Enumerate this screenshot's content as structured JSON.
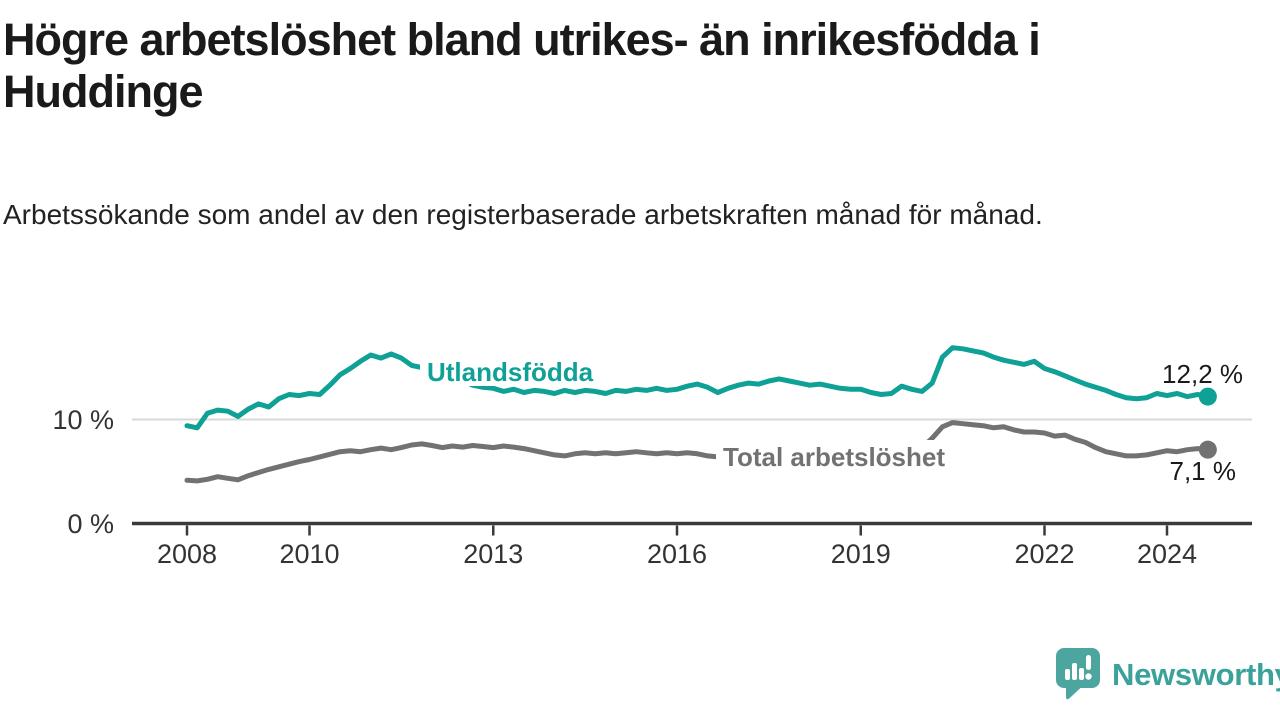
{
  "header": {
    "title": "Högre arbetslöshet bland utrikes- än inrikesfödda i Huddinge",
    "subtitle": "Arbetssökande som andel av den registerbaserade arbetskraften månad för månad."
  },
  "colors": {
    "series_foreign": "#0fa096",
    "series_total": "#727272",
    "axis": "#3a3a3a",
    "grid": "#d8d8d8",
    "tick_text": "#333333",
    "value_text": "#1a1a1a",
    "logo": "#4ca69f",
    "logo_text": "#3aa29b"
  },
  "chart_data": {
    "type": "line",
    "x_start": 2008.0,
    "x_step": 0.16667,
    "x_unit": "year (monthly data, one point per 2 months)",
    "y_unit": "%",
    "grid": "horizontal gridline at 10 % only",
    "legend_position": "labels on lines",
    "xlim": [
      2007.2,
      2025.4
    ],
    "ylim": [
      0,
      21.5
    ],
    "xticks": [
      {
        "value": 2008,
        "label": "2008"
      },
      {
        "value": 2010,
        "label": "2010"
      },
      {
        "value": 2013,
        "label": "2013"
      },
      {
        "value": 2016,
        "label": "2016"
      },
      {
        "value": 2019,
        "label": "2019"
      },
      {
        "value": 2022,
        "label": "2022"
      },
      {
        "value": 2024,
        "label": "2024"
      }
    ],
    "yticks": [
      {
        "value": 0,
        "label": "0 %"
      },
      {
        "value": 10,
        "label": "10 %"
      }
    ],
    "series": [
      {
        "name": "Utlandsfödda",
        "color_key": "series_foreign",
        "end_label": "12,2 %",
        "values": [
          9.4,
          9.2,
          10.6,
          10.9,
          10.8,
          10.3,
          11.0,
          11.5,
          11.2,
          12.0,
          12.4,
          12.3,
          12.5,
          12.4,
          13.3,
          14.3,
          14.9,
          15.6,
          16.2,
          15.9,
          16.3,
          15.9,
          15.2,
          15.0,
          15.1,
          14.7,
          14.2,
          13.7,
          13.3,
          13.1,
          13.0,
          12.7,
          12.9,
          12.6,
          12.8,
          12.7,
          12.5,
          12.8,
          12.6,
          12.8,
          12.7,
          12.5,
          12.8,
          12.7,
          12.9,
          12.8,
          13.0,
          12.8,
          12.9,
          13.2,
          13.4,
          13.1,
          12.6,
          13.0,
          13.3,
          13.5,
          13.4,
          13.7,
          13.9,
          13.7,
          13.5,
          13.3,
          13.4,
          13.2,
          13.0,
          12.9,
          12.9,
          12.6,
          12.4,
          12.5,
          13.2,
          12.9,
          12.7,
          13.5,
          16.0,
          16.9,
          16.8,
          16.6,
          16.4,
          16.0,
          15.7,
          15.5,
          15.3,
          15.6,
          14.9,
          14.6,
          14.2,
          13.8,
          13.4,
          13.1,
          12.8,
          12.4,
          12.1,
          12.0,
          12.1,
          12.5,
          12.3,
          12.5,
          12.2,
          12.4,
          12.2
        ]
      },
      {
        "name": "Total arbetslöshet",
        "color_key": "series_total",
        "end_label": "7,1 %",
        "values": [
          4.15,
          4.1,
          4.25,
          4.5,
          4.35,
          4.2,
          4.6,
          4.9,
          5.2,
          5.45,
          5.7,
          5.95,
          6.15,
          6.4,
          6.65,
          6.9,
          7.0,
          6.9,
          7.1,
          7.25,
          7.1,
          7.3,
          7.55,
          7.65,
          7.5,
          7.3,
          7.45,
          7.35,
          7.5,
          7.4,
          7.3,
          7.45,
          7.35,
          7.2,
          7.0,
          6.8,
          6.6,
          6.5,
          6.7,
          6.8,
          6.7,
          6.8,
          6.7,
          6.8,
          6.9,
          6.8,
          6.7,
          6.8,
          6.7,
          6.8,
          6.7,
          6.5,
          6.4,
          6.5,
          6.5,
          6.6,
          6.5,
          6.6,
          6.5,
          6.4,
          6.4,
          6.3,
          6.4,
          6.3,
          6.4,
          6.5,
          6.4,
          6.5,
          6.6,
          6.7,
          6.9,
          7.1,
          7.3,
          8.2,
          9.3,
          9.7,
          9.6,
          9.5,
          9.4,
          9.2,
          9.3,
          9.0,
          8.8,
          8.8,
          8.7,
          8.4,
          8.5,
          8.1,
          7.8,
          7.3,
          6.9,
          6.7,
          6.5,
          6.5,
          6.6,
          6.8,
          7.0,
          6.9,
          7.1,
          7.2,
          7.1
        ]
      }
    ]
  },
  "footer": {
    "brand": "Newsworthy"
  }
}
